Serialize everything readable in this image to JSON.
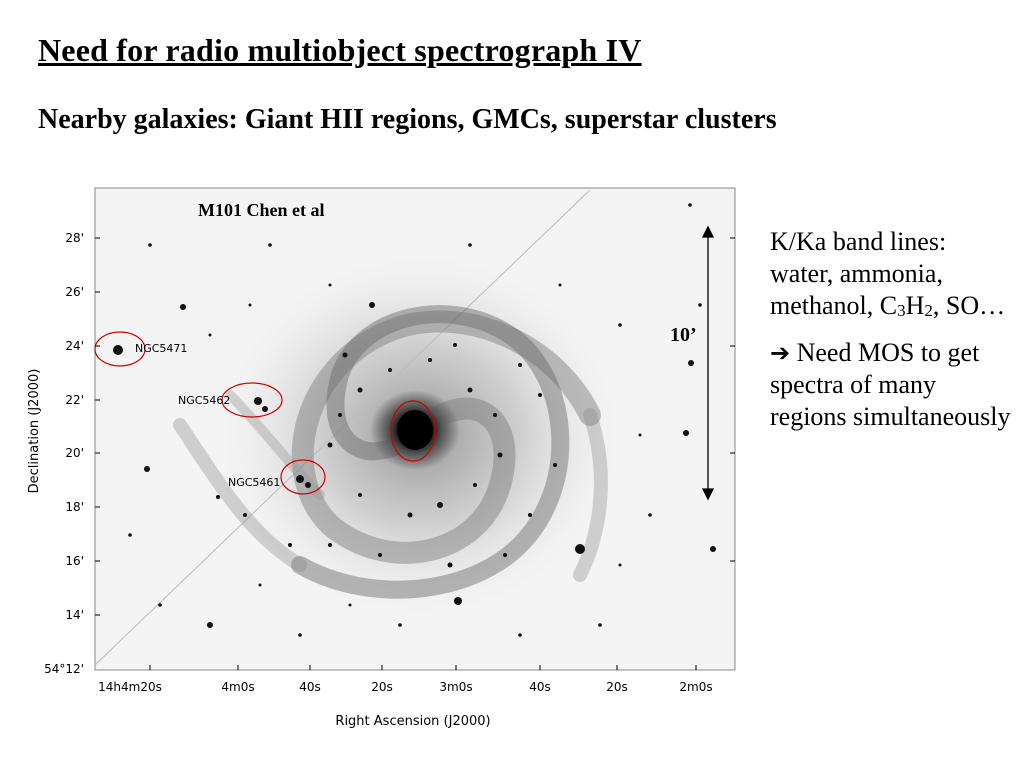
{
  "slide": {
    "title": "Need for radio multiobject spectrograph IV",
    "subtitle": "Nearby galaxies: Giant HII regions, GMCs, superstar clusters"
  },
  "figure": {
    "caption": "M101  Chen et al",
    "scale_label": "10’",
    "ylabel": "Declination (J2000)",
    "xlabel": "Right Ascension (J2000)",
    "y_ticks": [
      "28'",
      "26'",
      "24'",
      "22'",
      "20'",
      "18'",
      "16'",
      "14'",
      "54°12'"
    ],
    "x_ticks": [
      "14h4m20s",
      "4m0s",
      "40s",
      "20s",
      "3m0s",
      "40s",
      "20s",
      "2m0s"
    ],
    "labels": {
      "ngc5471": "NGC5471",
      "ngc5462": "NGC5462",
      "ngc5461": "NGC5461"
    },
    "marker_color": "#cc0000"
  },
  "side": {
    "line1": "K/Ka band lines: water, ammonia, methanol, C",
    "sub1": "3",
    "mid1": "H",
    "sub2": "2",
    "tail1": ", SO…",
    "arrow_icon": "right-arrow-icon",
    "para2": " Need MOS to get spectra of many regions simultaneously"
  }
}
